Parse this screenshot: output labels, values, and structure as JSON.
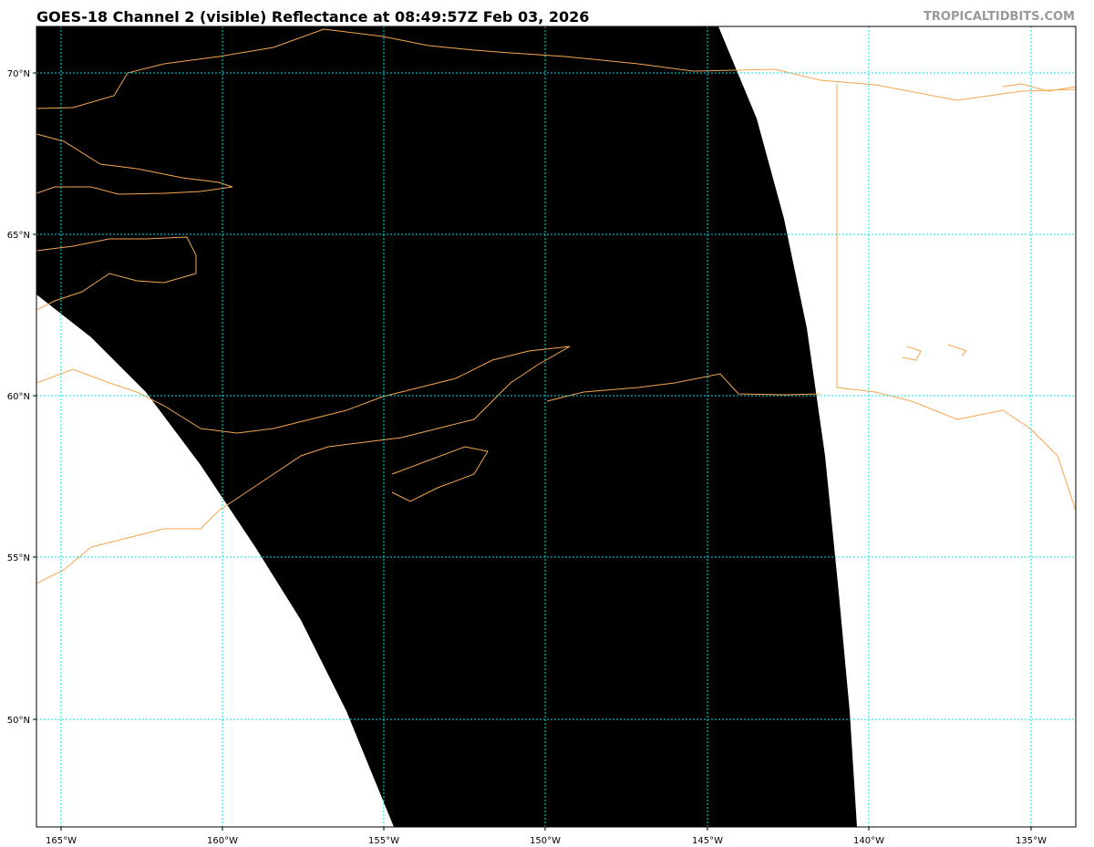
{
  "title": "GOES-18 Channel 2 (visible) Reflectance at 08:49:57Z Feb 03, 2026",
  "watermark": "TROPICALTIDBITS.COM",
  "map": {
    "lon_ticks": [
      "165°W",
      "160°W",
      "155°W",
      "150°W",
      "145°W",
      "140°W",
      "135°W"
    ],
    "lat_ticks": [
      "70°N",
      "65°N",
      "60°N",
      "55°N",
      "50°N"
    ],
    "colors": {
      "gridline": "#00e5ee",
      "coastline": "#f4a650",
      "swath": "#000000",
      "background": "#ffffff"
    }
  }
}
